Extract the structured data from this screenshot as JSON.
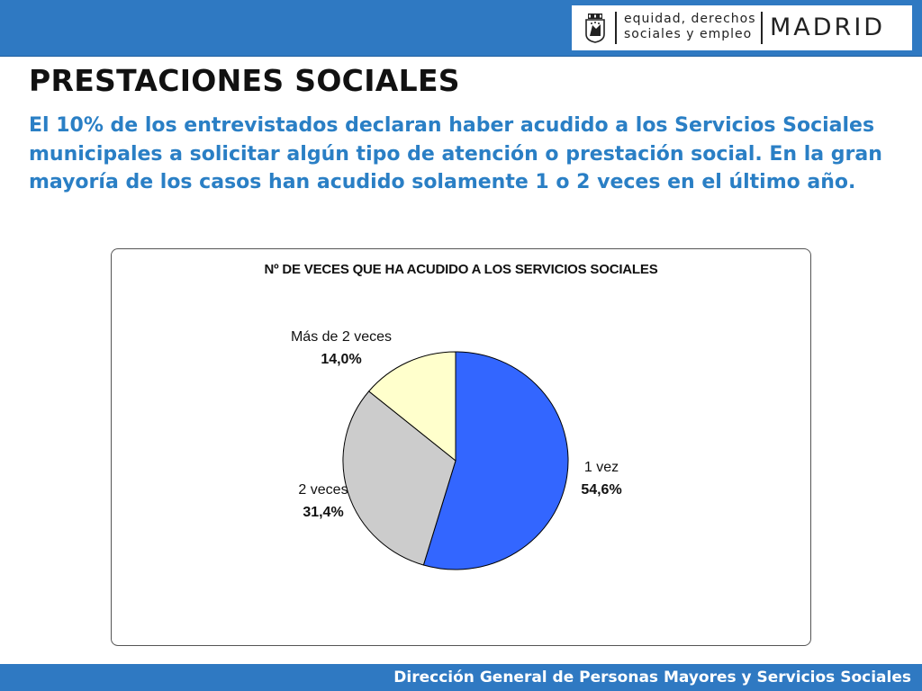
{
  "header": {
    "brand": {
      "department_line1": "equidad, derechos",
      "department_line2": "sociales y empleo",
      "city": "MADRID",
      "crest_icon": "madrid-crest-icon"
    }
  },
  "main": {
    "title": "PRESTACIONES SOCIALES",
    "intro": "El 10% de los entrevistados declaran haber acudido a los Servicios Sociales municipales a solicitar algún tipo de atención o prestación social. En la gran mayoría de los casos han acudido solamente 1 o 2 veces en el último año."
  },
  "chart_data": {
    "type": "pie",
    "title": "Nº DE VECES QUE HA ACUDIDO A LOS SERVICIOS SOCIALES",
    "slices": [
      {
        "label": "1 vez",
        "value": 54.6,
        "value_label": "54,6%",
        "color": "#3366ff"
      },
      {
        "label": "2 veces",
        "value": 31.4,
        "value_label": "31,4%",
        "color": "#cccccc"
      },
      {
        "label": "Más de 2 veces",
        "value": 14.0,
        "value_label": "14,0%",
        "color": "#ffffcc"
      }
    ],
    "start": "top",
    "direction": "clockwise",
    "legend": "none"
  },
  "footer": {
    "text": "Dirección General de Personas Mayores y Servicios Sociales"
  },
  "colors": {
    "header_bar": "#2f79c2",
    "intro_text": "#2a7fc5",
    "footer_bar": "#2f79c2"
  }
}
